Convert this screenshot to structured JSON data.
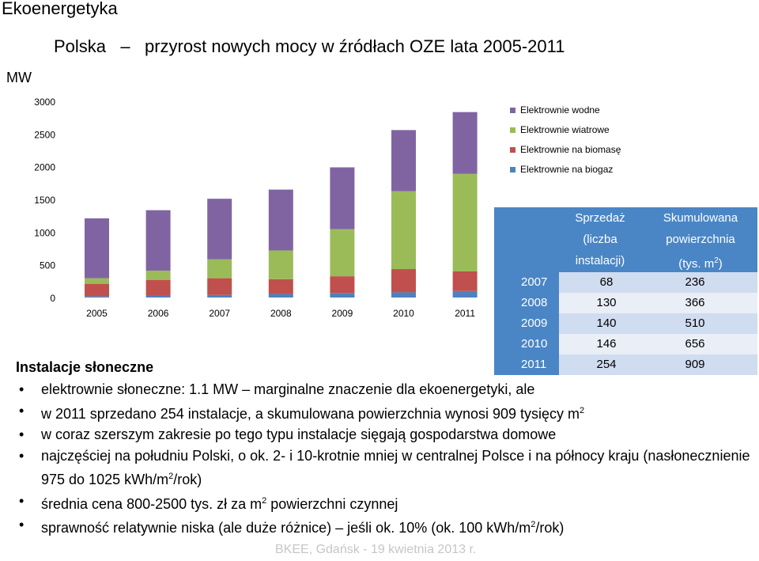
{
  "slide": {
    "title": "Ekoenergetyka",
    "footer": "BKEE, Gdańsk - 19 kwietnia 2013 r."
  },
  "chart_data": {
    "type": "bar",
    "stacked": true,
    "title": "Polska – przyrost nowych mocy w źródłach OZE lata 2005-2011",
    "title_part1": "Polska",
    "title_dash": "–",
    "title_part2": "przyrost nowych mocy w źródłach OZE lata 2005-2011",
    "ylabel": "MW",
    "xlabel": "",
    "ylim": [
      0,
      3000
    ],
    "yticks": [
      0,
      500,
      1000,
      1500,
      2000,
      2500,
      3000
    ],
    "ytick_labels": [
      "0",
      "500",
      "1000",
      "1500",
      "2000",
      "2500",
      "3000"
    ],
    "categories": [
      "2005",
      "2006",
      "2007",
      "2008",
      "2009",
      "2010",
      "2011"
    ],
    "legend_position": "top-right",
    "grid": false,
    "series": [
      {
        "name": "Elektrownie na biogaz",
        "color": "#4f81bd",
        "values": [
          20,
          30,
          40,
          55,
          70,
          80,
          100
        ]
      },
      {
        "name": "Elektrownie na biomasę",
        "color": "#c0504d",
        "values": [
          190,
          240,
          255,
          225,
          255,
          355,
          300
        ]
      },
      {
        "name": "Elektrownie wiatrowe",
        "color": "#9bbb59",
        "values": [
          85,
          140,
          290,
          440,
          720,
          1190,
          1490
        ]
      },
      {
        "name": "Elektrownie wodne",
        "color": "#8064a2",
        "values": [
          915,
          925,
          925,
          930,
          945,
          935,
          945
        ]
      }
    ],
    "legend_order": [
      "Elektrownie wodne",
      "Elektrownie wiatrowe",
      "Elektrownie na biomasę",
      "Elektrownie na biogaz"
    ]
  },
  "table": {
    "header_sales": [
      "Sprzedaż",
      "(liczba",
      "instalacji)"
    ],
    "header_area": [
      "Skumulowana",
      "powierzchnia",
      "(tys. m",
      "2",
      ")"
    ],
    "rows": [
      {
        "year": "2007",
        "sales": "68",
        "area": "236"
      },
      {
        "year": "2008",
        "sales": "130",
        "area": "366"
      },
      {
        "year": "2009",
        "sales": "140",
        "area": "510"
      },
      {
        "year": "2010",
        "sales": "146",
        "area": "656"
      },
      {
        "year": "2011",
        "sales": "254",
        "area": "909"
      }
    ]
  },
  "section": {
    "heading": "Instalacje słoneczne",
    "bullet_char": "•",
    "bullets": [
      {
        "text": "elektrownie słoneczne: 1.1 MW – marginalne znaczenie dla ekoenergetyki, ale"
      },
      {
        "text": "w 2011 sprzedano 254 instalacje, a skumulowana powierzchnia wynosi 909 tysięcy m",
        "sup": "2"
      },
      {
        "text": "w coraz szerszym zakresie po tego typu instalacje sięgają gospodarstwa domowe"
      },
      {
        "text": "najczęściej na południu Polski, o ok. 2- i 10-krotnie mniej w centralnej Polsce i na północy kraju (nasłonecznienie 975 do 1025 kWh/m",
        "sup": "2",
        "after": "/rok)"
      },
      {
        "text": "średnia cena 800-2500 tys. zł za m",
        "sup": "2",
        "after": " powierzchni czynnej"
      },
      {
        "text": "sprawność relatywnie niska (ale duże różnice) – jeśli ok. 10% (ok. 100 kWh/m",
        "sup": "2",
        "after": "/rok)"
      }
    ]
  }
}
